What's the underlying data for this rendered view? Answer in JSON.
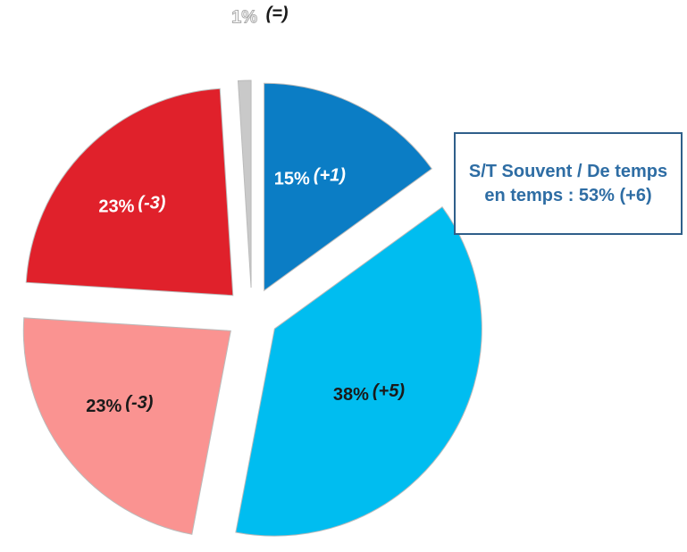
{
  "chart_data": {
    "type": "pie",
    "values": [
      15,
      38,
      23,
      23,
      1
    ],
    "value_labels": [
      "15%",
      "38%",
      "23%",
      "23%",
      "1%"
    ],
    "changes": [
      "(+1)",
      "(+5)",
      "(-3)",
      "(-3)",
      "(=)"
    ],
    "colors": [
      "#0b7dc5",
      "#00bdf0",
      "#fa9391",
      "#e0212b",
      "#c9c9c9"
    ],
    "label_colors": [
      "#ffffff",
      "#1a1a1a",
      "#1a1a1a",
      "#ffffff",
      "#ffffff"
    ],
    "start_angle": 0,
    "exploded": true,
    "annotation": "S/T Souvent / De temps en temps : 53% (+6)"
  }
}
